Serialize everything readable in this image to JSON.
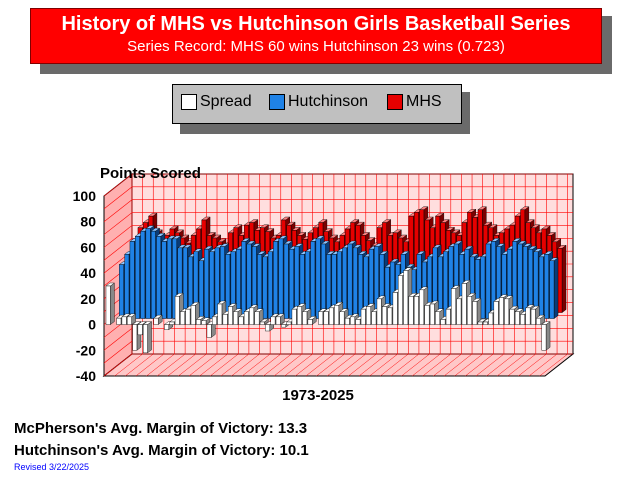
{
  "header": {
    "title": "History of MHS vs Hutchinson Girls Basketball Series",
    "subtitle": "Series Record:  MHS 60 wins  Hutchinson 23 wins (0.723)"
  },
  "legend": [
    {
      "label": "Spread",
      "color": "#ffffff"
    },
    {
      "label": "Hutchinson",
      "color": "#1f82e6"
    },
    {
      "label": "MHS",
      "color": "#e60000"
    }
  ],
  "footer": {
    "mhs_margin": "McPherson's Avg. Margin of Victory: 13.3",
    "hutch_margin": "Hutchinson's Avg. Margin of Victory: 10.1",
    "revised": "Revised 3/22/2025"
  },
  "colors": {
    "mhs": "#e60000",
    "hutchinson": "#1f82e6",
    "spread": "#ffffff",
    "wall": "#ffdede",
    "grid": "#ff0000"
  },
  "chart_data": {
    "type": "bar",
    "ylabel": "Points Scored",
    "xlabel": "1973-2025",
    "ylim": [
      -40,
      100
    ],
    "yticks": [
      100,
      80,
      60,
      40,
      20,
      0,
      -20,
      -40
    ],
    "grid": true,
    "series": [
      {
        "name": "MHS",
        "values": [
          30,
          42,
          55,
          66,
          70,
          75,
          62,
          56,
          60,
          65,
          62,
          58,
          54,
          60,
          65,
          72,
          60,
          58,
          55,
          52,
          62,
          66,
          60,
          68,
          70,
          64,
          66,
          63,
          58,
          60,
          72,
          68,
          64,
          60,
          57,
          62,
          66,
          70,
          63,
          58,
          55,
          60,
          65,
          70,
          68,
          60,
          56,
          52,
          66,
          70,
          60,
          62,
          58,
          55,
          75,
          78,
          80,
          72,
          66,
          75,
          70,
          64,
          62,
          60,
          70,
          78,
          74,
          80,
          68,
          66,
          60,
          62,
          65,
          68,
          75,
          80,
          70,
          66,
          62,
          65,
          60,
          55,
          50
        ]
      },
      {
        "name": "Hutchinson",
        "values": [
          0,
          42,
          50,
          60,
          64,
          68,
          70,
          68,
          64,
          60,
          62,
          62,
          55,
          55,
          48,
          52,
          45,
          54,
          52,
          55,
          56,
          50,
          52,
          54,
          60,
          58,
          56,
          50,
          48,
          52,
          60,
          62,
          58,
          54,
          56,
          50,
          52,
          60,
          62,
          58,
          50,
          50,
          52,
          55,
          58,
          55,
          50,
          48,
          54,
          56,
          50,
          40,
          44,
          42,
          50,
          40,
          38,
          50,
          44,
          48,
          55,
          48,
          52,
          56,
          58,
          50,
          54,
          48,
          46,
          48,
          58,
          60,
          56,
          50,
          54,
          60,
          58,
          56,
          54,
          52,
          48,
          50,
          45
        ]
      },
      {
        "name": "Spread",
        "values": [
          30,
          0,
          5,
          6,
          6,
          -20,
          -8,
          -22,
          0,
          5,
          0,
          -4,
          2,
          22,
          10,
          12,
          15,
          4,
          3,
          -10,
          6,
          16,
          8,
          14,
          10,
          6,
          10,
          13,
          10,
          2,
          -5,
          6,
          6,
          -2,
          2,
          12,
          14,
          10,
          4,
          0,
          10,
          10,
          13,
          15,
          10,
          5,
          6,
          4,
          12,
          14,
          10,
          20,
          14,
          13,
          25,
          38,
          42,
          22,
          22,
          27,
          15,
          16,
          10,
          4,
          12,
          28,
          20,
          32,
          22,
          18,
          2,
          2,
          9,
          18,
          21,
          20,
          12,
          10,
          8,
          13,
          12,
          5,
          -20
        ]
      }
    ]
  }
}
